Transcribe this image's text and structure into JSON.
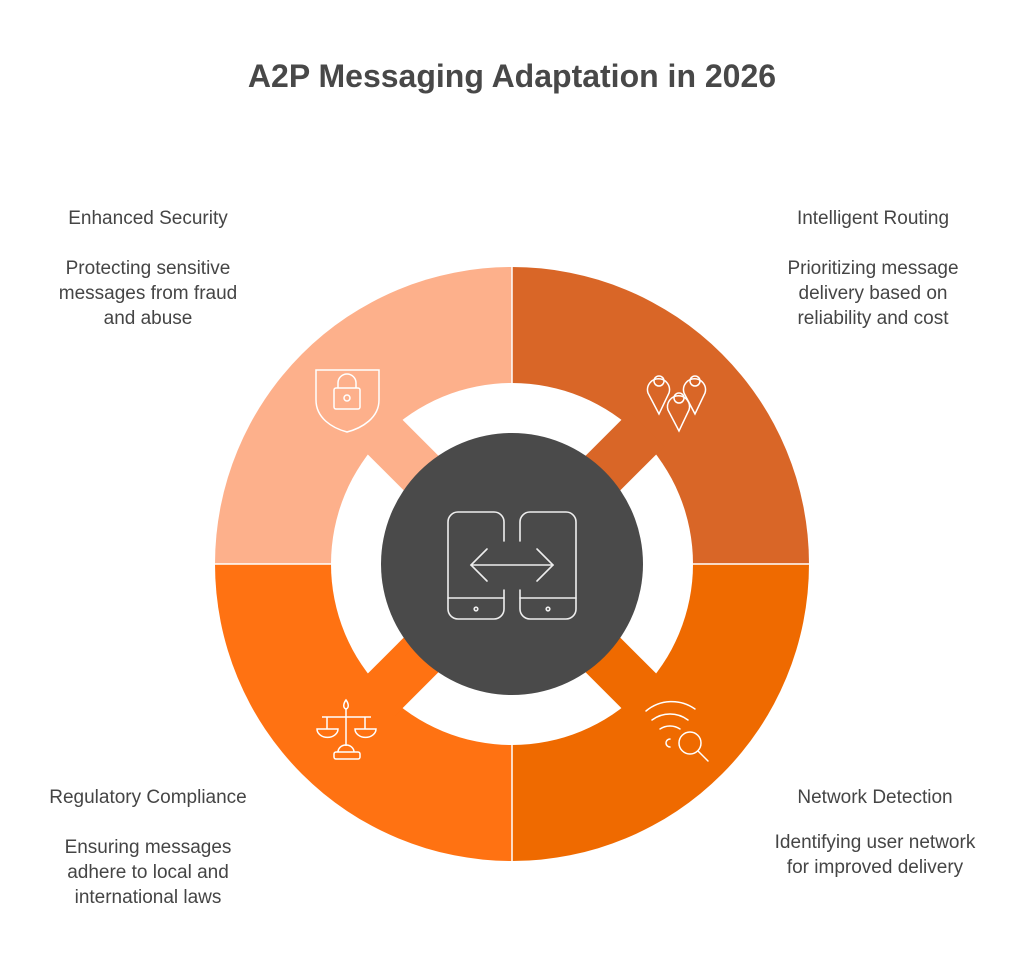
{
  "title": "A2P Messaging Adaptation in 2026",
  "center": {
    "icon": "phones-exchange-icon",
    "color": "#4a4a4a"
  },
  "segments": [
    {
      "position": "top-left",
      "title": "Enhanced Security",
      "description": [
        "Protecting sensitive",
        "messages from fraud",
        "and abuse"
      ],
      "icon": "shield-lock-icon",
      "color": "#FDB08B"
    },
    {
      "position": "top-right",
      "title": "Intelligent Routing",
      "description": [
        "Prioritizing message",
        "delivery based on",
        "reliability and cost"
      ],
      "icon": "map-pins-icon",
      "color": "#D96627"
    },
    {
      "position": "bottom-left",
      "title": "Regulatory Compliance",
      "description": [
        "Ensuring messages",
        "adhere to local and",
        "international laws"
      ],
      "icon": "scales-icon",
      "color": "#FF7212"
    },
    {
      "position": "bottom-right",
      "title": "Network Detection",
      "description": [
        "Identifying user network",
        "for improved delivery"
      ],
      "icon": "signal-search-icon",
      "color": "#EF6A00"
    }
  ]
}
